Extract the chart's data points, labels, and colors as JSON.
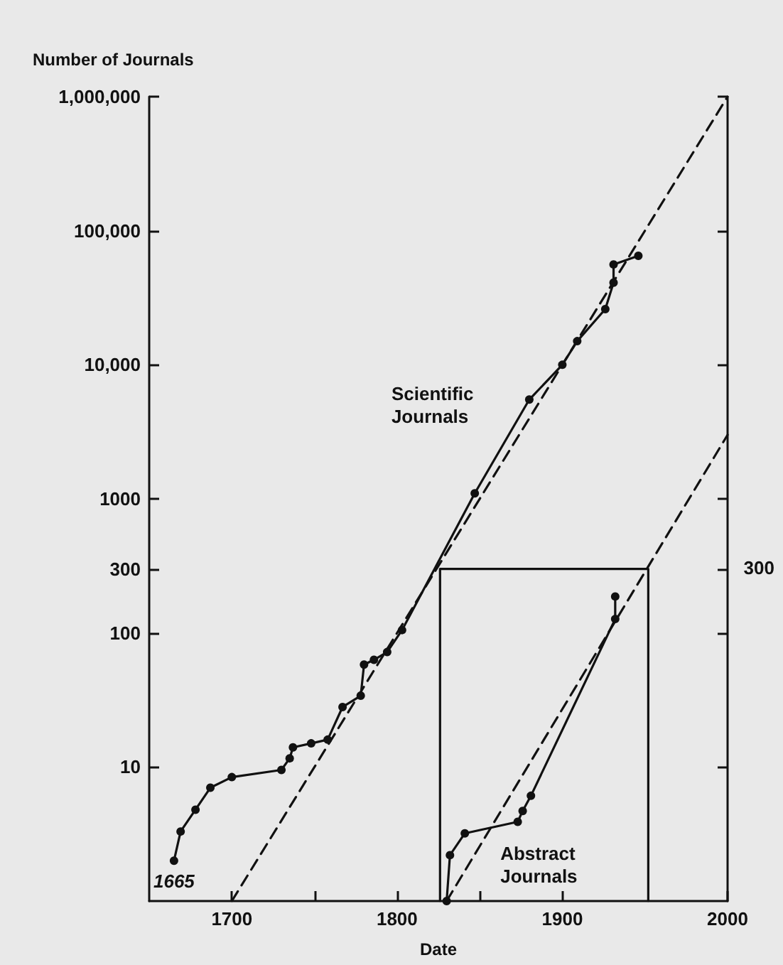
{
  "chart_data": {
    "type": "line",
    "xlabel": "Date",
    "ylabel": "Number of Journals",
    "log": "y",
    "grid": false,
    "legend": false,
    "marker": "circle",
    "line_style": "solid",
    "xlim": [
      1650,
      2000
    ],
    "xticks": [
      1700,
      {
        "value": 1750,
        "label": null
      },
      1800,
      {
        "value": 1850,
        "label": null
      },
      1900,
      2000
    ],
    "ylim": [
      1,
      1000000
    ],
    "yticks": [
      10,
      100,
      300,
      1000,
      {
        "value": 10000,
        "label": "10,000"
      },
      {
        "value": 100000,
        "label": "100,000"
      },
      {
        "value": 1000000,
        "label": "1,000,000"
      }
    ],
    "annotations": [
      {
        "text": "1665",
        "x": 1665,
        "y": 2
      },
      "300"
    ],
    "series": [
      {
        "name": "Scientific Journals",
        "color": "#111111",
        "x": [
          1665,
          1669,
          1678,
          1687,
          1700,
          1730,
          1735,
          1737,
          1748,
          1758,
          1767,
          1778,
          1780,
          1786,
          1794,
          1803,
          1847,
          1880,
          1900,
          1909,
          1926,
          1931,
          1931,
          1946
        ],
        "values": [
          2,
          3.3,
          4.8,
          7,
          8.4,
          9.5,
          11.6,
          14,
          15,
          16,
          28,
          34,
          58,
          63,
          72,
          105,
          1100,
          5500,
          10000,
          15000,
          26000,
          41000,
          56000,
          65000
        ]
      },
      {
        "name": "Abstract Journals",
        "color": "#111111",
        "x": [
          1830,
          1832,
          1841,
          1873,
          1876,
          1881,
          1932,
          1932
        ],
        "values": [
          1,
          2.2,
          3.2,
          3.9,
          4.7,
          6.1,
          127,
          187
        ]
      },
      {
        "type": "line",
        "color": "#111111",
        "marker": "none",
        "line_style": "dashed",
        "x": [
          1700,
          2000
        ],
        "values": [
          1,
          1000000
        ]
      },
      {
        "type": "line",
        "color": "#111111",
        "marker": "none",
        "line_style": "dashed",
        "x": [
          1830,
          2000
        ],
        "values": [
          1,
          3000
        ]
      },
      {
        "type": "line",
        "color": "#111111",
        "marker": "none",
        "line_style": "solid",
        "x": [
          1826,
          1826,
          1952,
          1952
        ],
        "values": [
          1,
          300,
          300,
          1
        ]
      }
    ]
  }
}
